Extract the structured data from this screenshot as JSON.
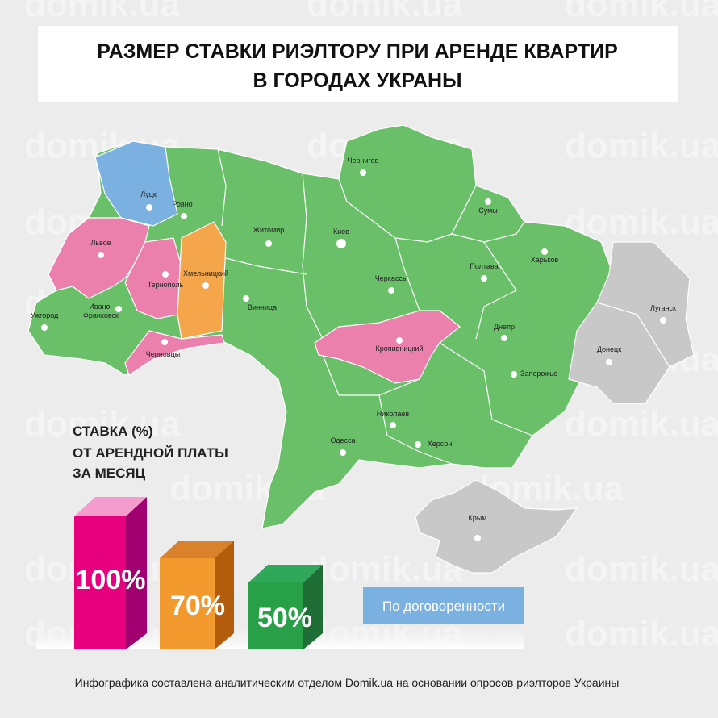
{
  "watermark": "domik.ua",
  "header": {
    "title_lines": [
      "РАЗМЕР СТАВКИ РИЭЛТОРУ ПРИ АРЕНДЕ КВАРТИР",
      "В ГОРОДАХ УКРАНЫ"
    ]
  },
  "cities": [
    {
      "label": "Чернигов"
    },
    {
      "label": "Луцк"
    },
    {
      "label": "Ровно"
    },
    {
      "label": "Сумы"
    },
    {
      "label": "Житомир"
    },
    {
      "label": "Киев"
    },
    {
      "label": "Харьков"
    },
    {
      "label": "Львов"
    },
    {
      "label": "Полтава"
    },
    {
      "label": "Тернополь"
    },
    {
      "label": "Хмельницкий"
    },
    {
      "label": "Черкассы"
    },
    {
      "label": "Ужгород"
    },
    {
      "label": [
        "Ивано-",
        "Франковск"
      ]
    },
    {
      "label": "Винница"
    },
    {
      "label": "Луганск"
    },
    {
      "label": "Днепр"
    },
    {
      "label": "Донецк"
    },
    {
      "label": "Черновцы"
    },
    {
      "label": "Кропивницкий"
    },
    {
      "label": "Запорожье"
    },
    {
      "label": "Николаев"
    },
    {
      "label": "Одесса"
    },
    {
      "label": "Херсон"
    },
    {
      "label": "Крым"
    }
  ],
  "legend": {
    "title_lines": [
      "СТАВКА (%)",
      "ОТ АРЕНДНОЙ ПЛАТЫ",
      "ЗА МЕСЯЦ"
    ],
    "items": [
      {
        "label": "100%"
      },
      {
        "label": "70%"
      },
      {
        "label": "50%"
      }
    ],
    "other": "По договоренности"
  },
  "footer": "Инфографика составлена аналитическим отделом Domik.ua на основании опросов риэлторов Украины"
}
